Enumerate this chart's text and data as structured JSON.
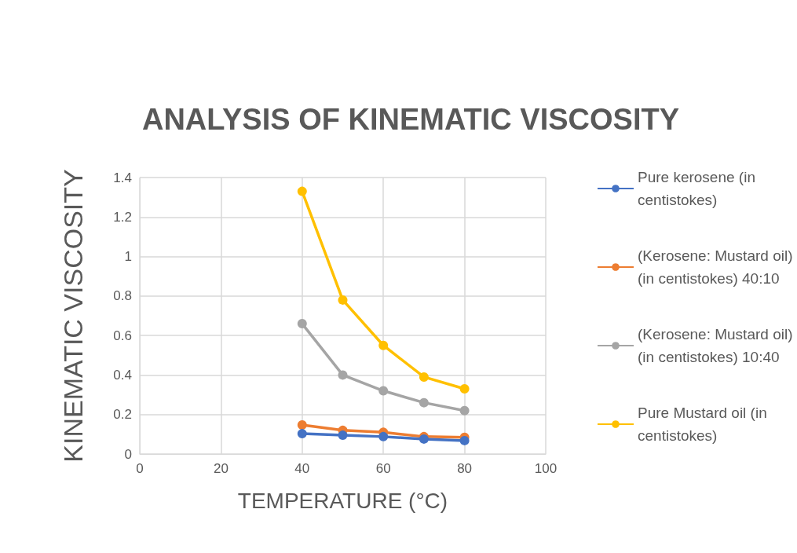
{
  "chart_data": {
    "type": "line",
    "title": "ANALYSIS OF KINEMATIC VISCOSITY",
    "xlabel": "TEMPERATURE (°C)",
    "ylabel": "KINEMATIC VISCOSITY",
    "x": [
      40,
      50,
      60,
      70,
      80
    ],
    "series": [
      {
        "name": "Pure kerosene (in centistokes)",
        "color": "#4472c4",
        "values": [
          0.103,
          0.095,
          0.088,
          0.076,
          0.068
        ]
      },
      {
        "name": "(Kerosene: Mustard oil) (in centistokes) 40:10",
        "color": "#ed7d31",
        "values": [
          0.147,
          0.12,
          0.11,
          0.088,
          0.085
        ]
      },
      {
        "name": "(Kerosene: Mustard oil) (in centistokes) 10:40",
        "color": "#a5a5a5",
        "values": [
          0.66,
          0.4,
          0.32,
          0.26,
          0.22
        ]
      },
      {
        "name": "Pure Mustard oil (in centistokes)",
        "color": "#ffc000",
        "values": [
          1.33,
          0.78,
          0.55,
          0.39,
          0.33
        ]
      }
    ],
    "xlim": [
      0,
      100
    ],
    "xticks": [
      0,
      20,
      40,
      60,
      80,
      100
    ],
    "ylim": [
      0,
      1.4
    ],
    "yticks": [
      0,
      0.2,
      0.4,
      0.6,
      0.8,
      1,
      1.2,
      1.4
    ],
    "grid": true,
    "legend": "right",
    "marker": "circle",
    "line_style": "solid"
  }
}
